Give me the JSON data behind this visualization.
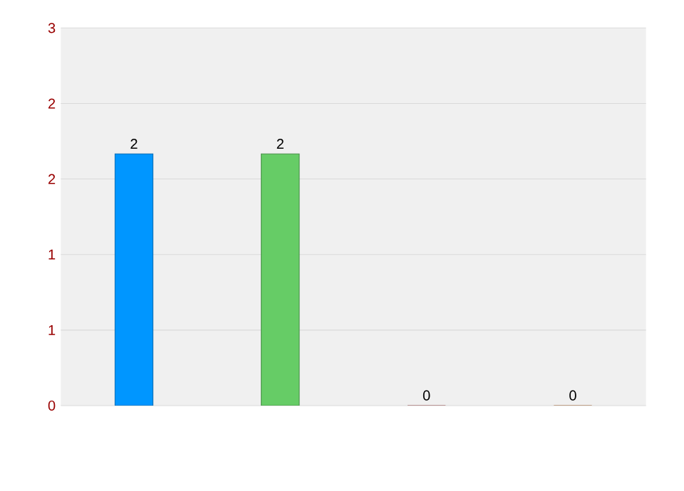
{
  "chart_data": {
    "type": "bar",
    "categories": [
      null,
      null,
      null,
      null
    ],
    "values": [
      2,
      2,
      0,
      0
    ],
    "colors": [
      "#0096ff",
      "#66cc66",
      "#cc6666",
      "#dd8844"
    ],
    "value_labels": [
      "2",
      "2",
      "0",
      "0"
    ],
    "ylim": [
      0,
      3
    ],
    "yticks": [
      {
        "value": 0,
        "label": "0"
      },
      {
        "value": 0.6,
        "label": "1"
      },
      {
        "value": 1.2,
        "label": "1"
      },
      {
        "value": 1.8,
        "label": "2"
      },
      {
        "value": 2.4,
        "label": "2"
      },
      {
        "value": 3,
        "label": "3"
      }
    ],
    "grid": "y"
  }
}
